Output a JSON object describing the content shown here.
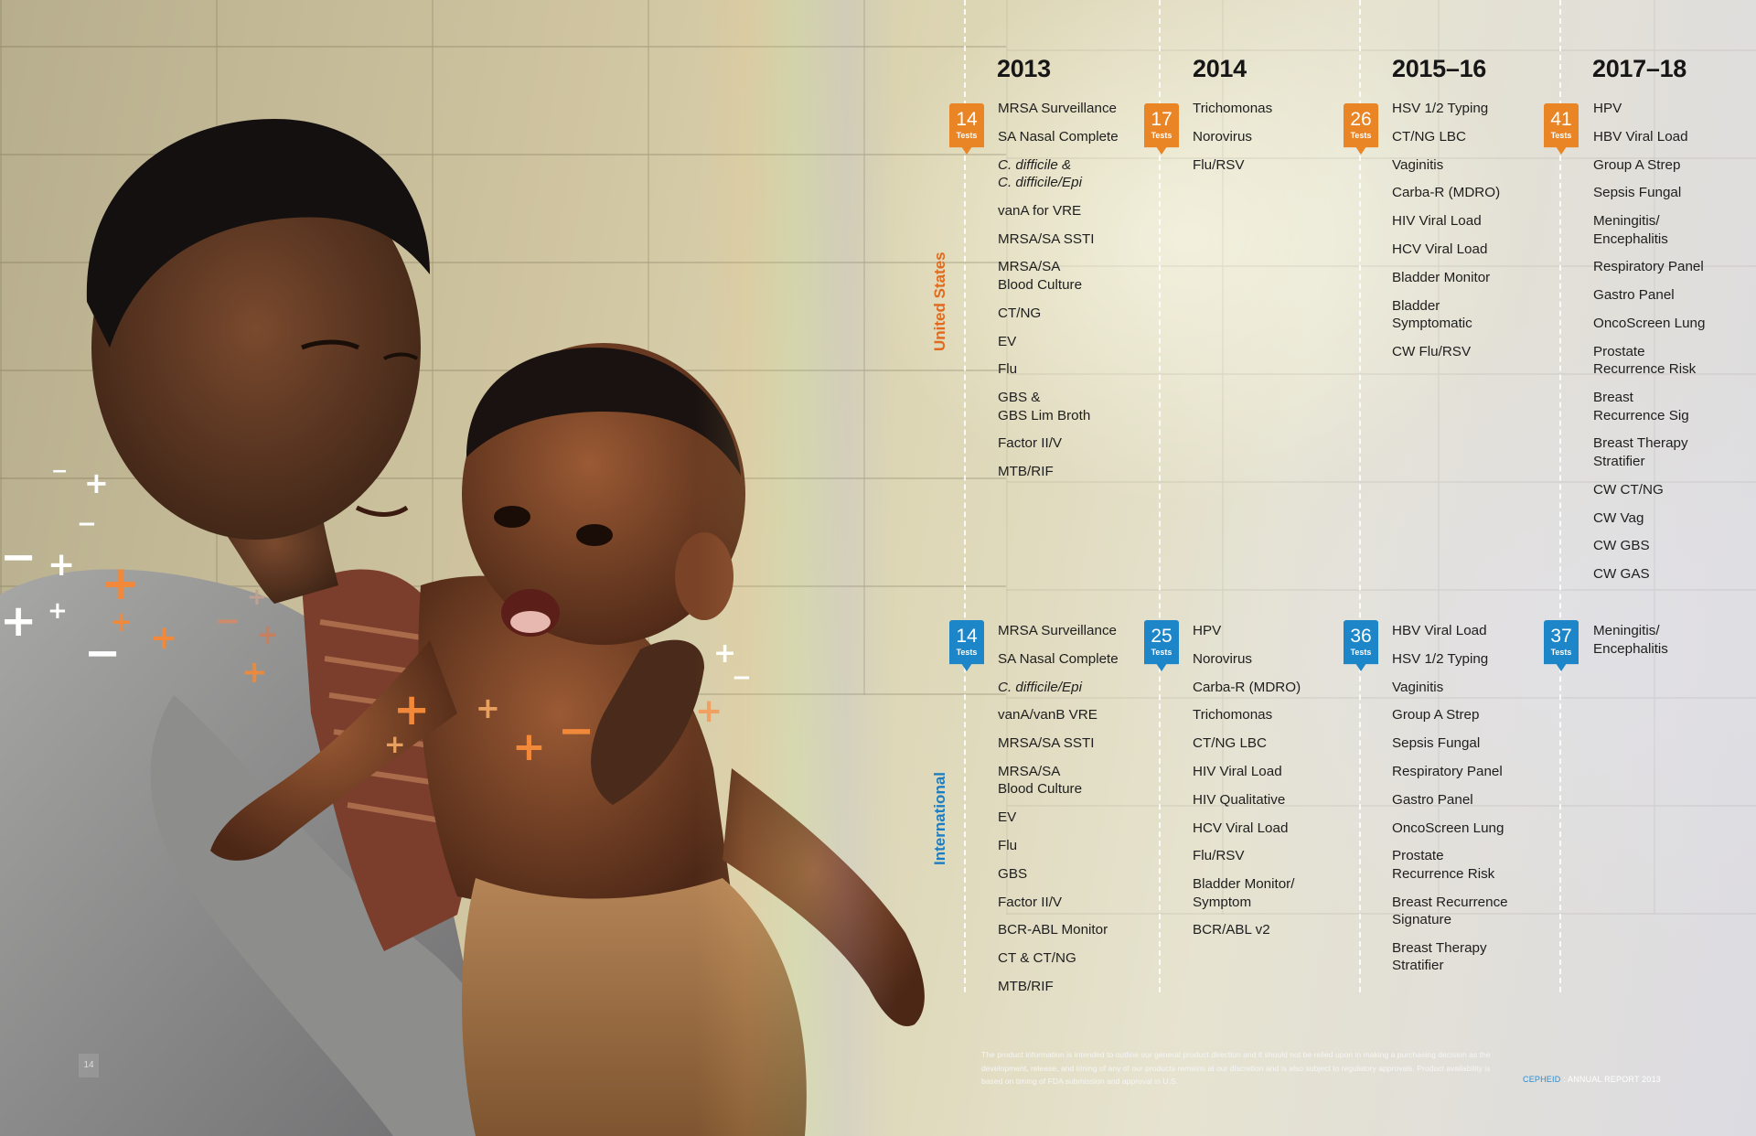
{
  "years": [
    "2013",
    "2014",
    "2015–16",
    "2017–18"
  ],
  "region_labels": {
    "us": "United States",
    "international": "International"
  },
  "badge_label": "Tests",
  "us": {
    "counts": [
      "14",
      "17",
      "26",
      "41"
    ],
    "columns": [
      [
        "MRSA Surveillance",
        "SA Nasal Complete",
        "C. difficile &\nC. difficile/Epi",
        "vanA for VRE",
        "MRSA/SA SSTI",
        "MRSA/SA\nBlood Culture",
        "CT/NG",
        "EV",
        "Flu",
        "GBS &\nGBS Lim Broth",
        "Factor II/V",
        "MTB/RIF"
      ],
      [
        "Trichomonas",
        "Norovirus",
        "Flu/RSV"
      ],
      [
        "HSV 1/2 Typing",
        "CT/NG LBC",
        "Vaginitis",
        "Carba-R (MDRO)",
        "HIV Viral Load",
        "HCV Viral Load",
        "Bladder Monitor",
        "Bladder\nSymptomatic",
        "CW Flu/RSV"
      ],
      [
        "HPV",
        "HBV Viral Load",
        "Group A Strep",
        "Sepsis Fungal",
        "Meningitis/\nEncephalitis",
        "Respiratory Panel",
        "Gastro Panel",
        "OncoScreen Lung",
        "Prostate\nRecurrence Risk",
        "Breast\nRecurrence Sig",
        "Breast Therapy\nStratifier",
        "CW CT/NG",
        "CW Vag",
        "CW GBS",
        "CW GAS"
      ]
    ]
  },
  "international": {
    "counts": [
      "14",
      "25",
      "36",
      "37"
    ],
    "columns": [
      [
        "MRSA Surveillance",
        "SA Nasal Complete",
        "C. difficile/Epi",
        "vanA/vanB VRE",
        "MRSA/SA SSTI",
        "MRSA/SA\nBlood Culture",
        "EV",
        "Flu",
        "GBS",
        "Factor II/V",
        "BCR-ABL Monitor",
        "CT & CT/NG",
        "MTB/RIF"
      ],
      [
        "HPV",
        "Norovirus",
        "Carba-R (MDRO)",
        "Trichomonas",
        "CT/NG LBC",
        "HIV Viral Load",
        "HIV Qualitative",
        "HCV Viral Load",
        "Flu/RSV",
        "Bladder Monitor/\nSymptom",
        "BCR/ABL v2"
      ],
      [
        "HBV Viral Load",
        "HSV 1/2 Typing",
        "Vaginitis",
        "Group A Strep",
        "Sepsis Fungal",
        "Respiratory Panel",
        "Gastro Panel",
        "OncoScreen Lung",
        "Prostate\nRecurrence Risk",
        "Breast Recurrence\nSignature",
        "Breast Therapy\nStratifier"
      ],
      [
        "Meningitis/\nEncephalitis"
      ]
    ]
  },
  "disclaimer": "The product information is intended to outline our general product direction and it should not be relied upon in making a purchasing decision as the development, release, and timing of any of our products remains at our discretion and is also subject to regulatory approvals. Product availability is based on timing of FDA submission and approval in U.S.",
  "footer": {
    "brand": "CEPHEID",
    "separator": " : ",
    "report": "ANNUAL REPORT 2013",
    "page_number": "14"
  },
  "colors": {
    "us_accent": "#e98525",
    "international_accent": "#1d86c9",
    "brand_blue": "#2a8cd0"
  }
}
